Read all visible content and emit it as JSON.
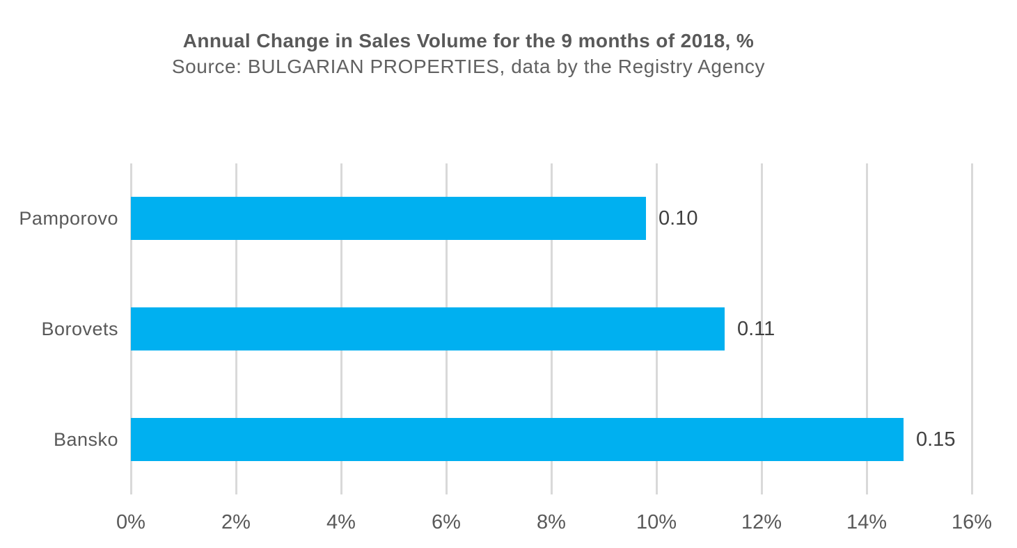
{
  "chart_data": {
    "type": "bar",
    "orientation": "horizontal",
    "title": "Annual Change in Sales Volume for the 9 months of 2018, %",
    "subtitle": "Source: BULGARIAN PROPERTIES, data by the Registry Agency",
    "categories": [
      "Pamporovo",
      "Borovets",
      "Bansko"
    ],
    "series": [
      {
        "name": "Annual change in sales volume",
        "values_percent": [
          9.8,
          11.3,
          14.7
        ],
        "data_labels": [
          "0.10",
          "0.11",
          "0.15"
        ]
      }
    ],
    "x_axis": {
      "min": 0,
      "max": 16,
      "step": 2,
      "ticks": [
        "0%",
        "2%",
        "4%",
        "6%",
        "8%",
        "10%",
        "12%",
        "14%",
        "16%"
      ]
    },
    "y_axis": {
      "ticks": [
        "Pamporovo",
        "Borovets",
        "Bansko"
      ]
    },
    "grid": true,
    "legend": false,
    "colors": {
      "bar": "#00B0F0",
      "gridline": "#D9D9D9",
      "title": "#595959",
      "subtitle": "#616161",
      "category_label": "#595959",
      "tick_label": "#595959",
      "data_label": "#404040",
      "background": "#FFFFFF"
    }
  }
}
